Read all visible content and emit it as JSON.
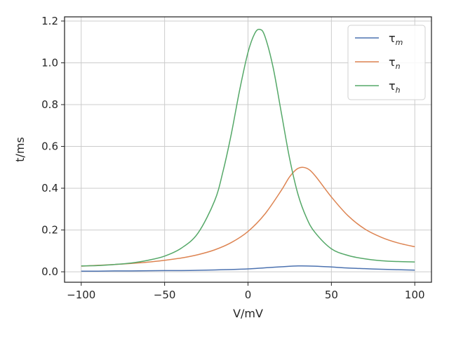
{
  "chart_data": {
    "type": "line",
    "title": "",
    "xlabel": "V/mV",
    "ylabel": "t/ms",
    "xlim": [
      -110,
      110
    ],
    "ylim": [
      -0.05,
      1.22
    ],
    "xticks": [
      -100,
      -50,
      0,
      50,
      100
    ],
    "xtick_labels": [
      "−100",
      "−50",
      "0",
      "50",
      "100"
    ],
    "yticks": [
      0.0,
      0.2,
      0.4,
      0.6,
      0.8,
      1.0,
      1.2
    ],
    "ytick_labels": [
      "0.0",
      "0.2",
      "0.4",
      "0.6",
      "0.8",
      "1.0",
      "1.2"
    ],
    "grid": true,
    "legend_position": "top-right",
    "series": [
      {
        "name": "τm",
        "color": "#4c72b0",
        "x": [
          -100,
          -90,
          -80,
          -70,
          -60,
          -50,
          -40,
          -30,
          -20,
          -10,
          0,
          10,
          20,
          30,
          40,
          50,
          60,
          70,
          80,
          90,
          100
        ],
        "y": [
          0.003,
          0.003,
          0.004,
          0.004,
          0.005,
          0.006,
          0.006,
          0.007,
          0.009,
          0.011,
          0.014,
          0.019,
          0.024,
          0.028,
          0.027,
          0.023,
          0.018,
          0.015,
          0.012,
          0.01,
          0.008
        ]
      },
      {
        "name": "τn",
        "color": "#dd8452",
        "x": [
          -100,
          -90,
          -80,
          -70,
          -60,
          -50,
          -40,
          -30,
          -20,
          -10,
          0,
          10,
          20,
          25,
          30,
          35,
          40,
          50,
          60,
          70,
          80,
          90,
          100
        ],
        "y": [
          0.027,
          0.031,
          0.035,
          0.04,
          0.046,
          0.055,
          0.066,
          0.082,
          0.105,
          0.14,
          0.193,
          0.275,
          0.39,
          0.455,
          0.495,
          0.496,
          0.462,
          0.358,
          0.268,
          0.205,
          0.165,
          0.138,
          0.12
        ]
      },
      {
        "name": "τh",
        "color": "#55a868",
        "x": [
          -100,
          -90,
          -80,
          -70,
          -60,
          -50,
          -40,
          -30,
          -20,
          -15,
          -10,
          -5,
          0,
          4,
          7,
          10,
          15,
          20,
          25,
          30,
          35,
          40,
          50,
          60,
          70,
          80,
          90,
          100
        ],
        "y": [
          0.028,
          0.03,
          0.035,
          0.042,
          0.055,
          0.075,
          0.113,
          0.185,
          0.34,
          0.48,
          0.66,
          0.87,
          1.05,
          1.14,
          1.16,
          1.13,
          0.98,
          0.76,
          0.54,
          0.37,
          0.26,
          0.19,
          0.11,
          0.078,
          0.062,
          0.053,
          0.049,
          0.047
        ]
      }
    ]
  }
}
